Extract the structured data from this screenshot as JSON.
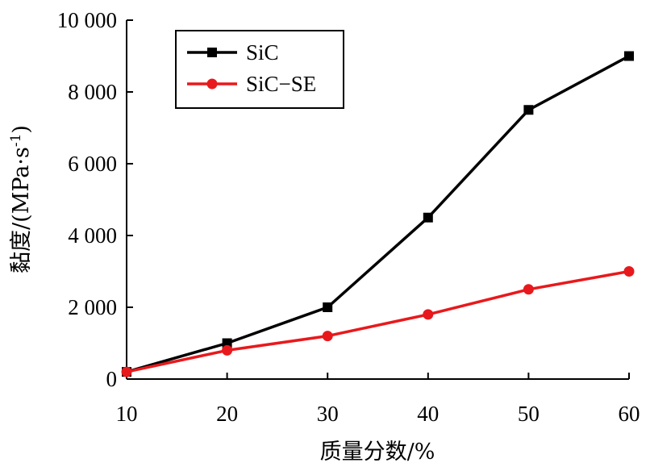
{
  "chart_data": {
    "type": "line",
    "xlabel": "质量分数/%",
    "ylabel_main": "黏度/(MPa·s",
    "ylabel_sup": "-1",
    "ylabel_close": ")",
    "x": [
      10,
      20,
      30,
      40,
      50,
      60
    ],
    "xlim": [
      10,
      60
    ],
    "ylim": [
      0,
      10000
    ],
    "x_ticks": [
      10,
      20,
      30,
      40,
      50,
      60
    ],
    "y_ticks": [
      0,
      2000,
      4000,
      6000,
      8000,
      10000
    ],
    "x_tick_labels": [
      "10",
      "20",
      "30",
      "40",
      "50",
      "60"
    ],
    "y_tick_labels": [
      "0",
      "2 000",
      "4 000",
      "6 000",
      "8 000",
      "10 000"
    ],
    "grid": false,
    "legend_position": "top-left",
    "series": [
      {
        "name": "SiC",
        "color": "#000000",
        "marker": "square",
        "values": [
          200,
          1000,
          2000,
          4500,
          7500,
          9000
        ]
      },
      {
        "name": "SiC−SE",
        "color": "#e8191c",
        "marker": "circle",
        "values": [
          200,
          800,
          1200,
          1800,
          2500,
          3000
        ]
      }
    ]
  }
}
